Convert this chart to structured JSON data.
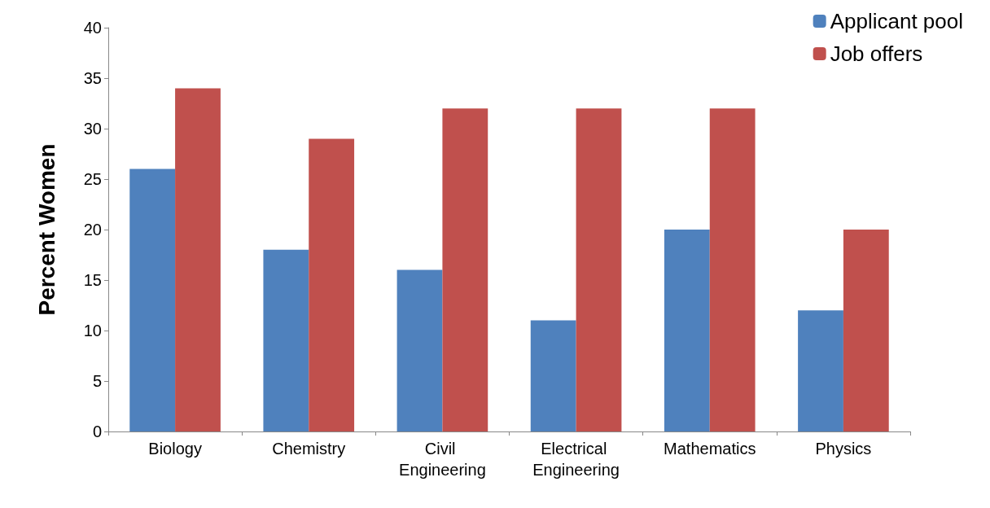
{
  "chart_data": {
    "type": "bar",
    "ylabel": "Percent Women",
    "categories": [
      "Biology",
      "Chemistry",
      "Civil Engineering",
      "Electrical Engineering",
      "Mathematics",
      "Physics"
    ],
    "series": [
      {
        "name": "Applicant pool",
        "color": "#4f81bd",
        "values": [
          26,
          18,
          16,
          11,
          20,
          12
        ]
      },
      {
        "name": "Job offers",
        "color": "#c0504d",
        "values": [
          34,
          29,
          32,
          32,
          32,
          20
        ]
      }
    ],
    "ylim": [
      0,
      40
    ],
    "yticks": [
      0,
      5,
      10,
      15,
      20,
      25,
      30,
      35,
      40
    ],
    "grid": false,
    "legend": "top right"
  }
}
